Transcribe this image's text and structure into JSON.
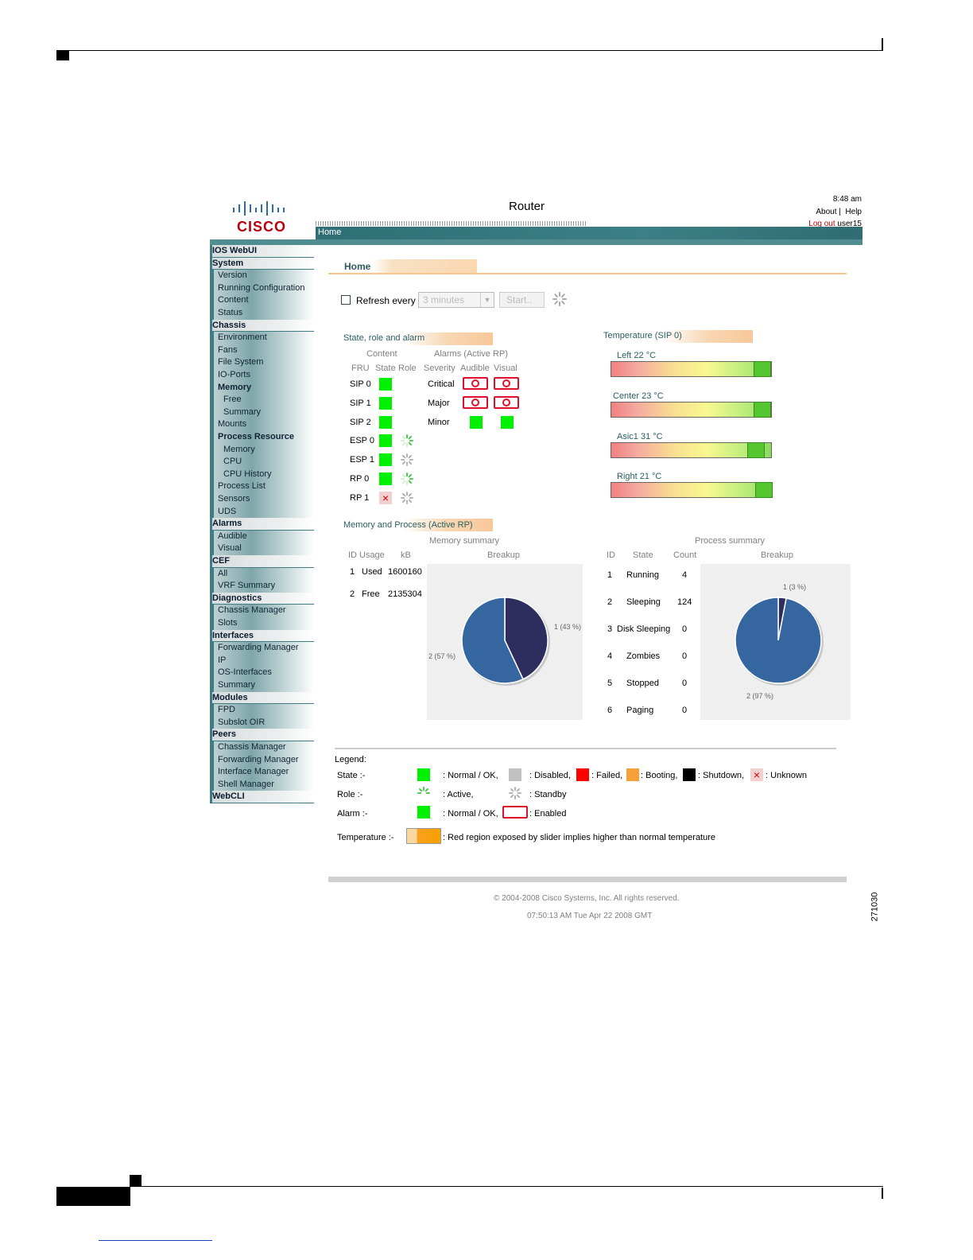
{
  "figure_number": "271030",
  "header": {
    "logo_text": "CISCO",
    "title": "Router",
    "time": "8:48 am",
    "about": "About",
    "help": "Help",
    "logout": "Log out",
    "user": "user15",
    "home_tab": "Home"
  },
  "sidebar": [
    {
      "label": "IOS WebUI",
      "kind": "hdr"
    },
    {
      "label": "System",
      "kind": "hdr"
    },
    {
      "label": "Version",
      "kind": "item"
    },
    {
      "label": "Running Configuration",
      "kind": "item"
    },
    {
      "label": "Content",
      "kind": "item"
    },
    {
      "label": "Status",
      "kind": "item"
    },
    {
      "label": "Chassis",
      "kind": "hdr"
    },
    {
      "label": "Environment",
      "kind": "item"
    },
    {
      "label": "Fans",
      "kind": "item"
    },
    {
      "label": "File System",
      "kind": "item"
    },
    {
      "label": "IO-Ports",
      "kind": "item"
    },
    {
      "label": "Memory",
      "kind": "sub"
    },
    {
      "label": "Free",
      "kind": "subitem"
    },
    {
      "label": "Summary",
      "kind": "subitem"
    },
    {
      "label": "Mounts",
      "kind": "item"
    },
    {
      "label": "Process Resource",
      "kind": "sub"
    },
    {
      "label": "Memory",
      "kind": "subitem"
    },
    {
      "label": "CPU",
      "kind": "subitem"
    },
    {
      "label": "CPU History",
      "kind": "subitem"
    },
    {
      "label": "Process List",
      "kind": "item"
    },
    {
      "label": "Sensors",
      "kind": "item"
    },
    {
      "label": "UDS",
      "kind": "item"
    },
    {
      "label": "Alarms",
      "kind": "hdr"
    },
    {
      "label": "Audible",
      "kind": "item"
    },
    {
      "label": "Visual",
      "kind": "item"
    },
    {
      "label": "CEF",
      "kind": "hdr"
    },
    {
      "label": "All",
      "kind": "item"
    },
    {
      "label": "VRF Summary",
      "kind": "item"
    },
    {
      "label": "Diagnostics",
      "kind": "hdr"
    },
    {
      "label": "Chassis Manager",
      "kind": "item"
    },
    {
      "label": "Slots",
      "kind": "item"
    },
    {
      "label": "Interfaces",
      "kind": "hdr"
    },
    {
      "label": "Forwarding Manager",
      "kind": "item"
    },
    {
      "label": "IP",
      "kind": "item"
    },
    {
      "label": "OS-Interfaces",
      "kind": "item"
    },
    {
      "label": "Summary",
      "kind": "item"
    },
    {
      "label": "Modules",
      "kind": "hdr"
    },
    {
      "label": "FPD",
      "kind": "item"
    },
    {
      "label": "Subslot OIR",
      "kind": "item"
    },
    {
      "label": "Peers",
      "kind": "hdr"
    },
    {
      "label": "Chassis Manager",
      "kind": "item"
    },
    {
      "label": "Forwarding Manager",
      "kind": "item"
    },
    {
      "label": "Interface Manager",
      "kind": "item"
    },
    {
      "label": "Shell Manager",
      "kind": "item"
    },
    {
      "label": "WebCLI",
      "kind": "hdr"
    }
  ],
  "main": {
    "page_title": "Home",
    "refresh_label": "Refresh every",
    "refresh_value": "3 minutes",
    "start_button": "Start..",
    "state_section": {
      "title": "State, role and alarm",
      "content_hdr": "Content",
      "alarms_hdr": "Alarms (Active RP)",
      "cols": [
        "FRU",
        "State",
        "Role",
        "Severity",
        "Audible",
        "Visual"
      ],
      "frus": [
        {
          "name": "SIP 0",
          "state": "ok",
          "role": ""
        },
        {
          "name": "SIP 1",
          "state": "ok",
          "role": ""
        },
        {
          "name": "SIP 2",
          "state": "ok",
          "role": ""
        },
        {
          "name": "ESP 0",
          "state": "ok",
          "role": "active"
        },
        {
          "name": "ESP 1",
          "state": "ok",
          "role": "standby"
        },
        {
          "name": "RP 0",
          "state": "ok",
          "role": "active"
        },
        {
          "name": "RP 1",
          "state": "unknown",
          "role": "standby"
        }
      ],
      "alarms": [
        {
          "severity": "Critical",
          "audible": "enabled",
          "visual": "enabled"
        },
        {
          "severity": "Major",
          "audible": "enabled",
          "visual": "enabled"
        },
        {
          "severity": "Minor",
          "audible": "ok",
          "visual": "ok"
        }
      ]
    },
    "temperature": {
      "title": "Temperature (SIP 0)",
      "sensors": [
        {
          "label": "Left 22 °C"
        },
        {
          "label": "Center 23 °C"
        },
        {
          "label": "Asic1 31 °C"
        },
        {
          "label": "Right 21 °C"
        }
      ]
    },
    "memproc": {
      "title": "Memory and Process (Active RP)",
      "memory_summary": "Memory summary",
      "mem_cols": [
        "ID",
        "Usage",
        "kB"
      ],
      "breakup": "Breakup",
      "mem_rows": [
        {
          "id": "1",
          "usage": "Used",
          "kb": "1600160"
        },
        {
          "id": "2",
          "usage": "Free",
          "kb": "2135304"
        }
      ],
      "process_summary": "Process summary",
      "proc_cols": [
        "ID",
        "State",
        "Count"
      ],
      "proc_rows": [
        {
          "id": "1",
          "state": "Running",
          "count": "4"
        },
        {
          "id": "2",
          "state": "Sleeping",
          "count": "124"
        },
        {
          "id": "3",
          "state": "Disk Sleeping",
          "count": "0"
        },
        {
          "id": "4",
          "state": "Zombies",
          "count": "0"
        },
        {
          "id": "5",
          "state": "Stopped",
          "count": "0"
        },
        {
          "id": "6",
          "state": "Paging",
          "count": "0"
        }
      ]
    },
    "legend": {
      "title": "Legend:",
      "state_label": "State :-",
      "state_items": [
        ": Normal / OK,",
        ": Disabled,",
        ": Failed,",
        ": Booting,",
        ": Shutdown,",
        ": Unknown"
      ],
      "role_label": "Role :-",
      "role_items": [
        ": Active,",
        ": Standby"
      ],
      "alarm_label": "Alarm :-",
      "alarm_items": [
        ": Normal / OK,",
        ": Enabled"
      ],
      "temp_label": "Temperature :-",
      "temp_text": ": Red region exposed by slider implies higher than normal temperature"
    },
    "footer": {
      "copyright": "© 2004-2008 Cisco Systems, Inc. All rights reserved.",
      "timestamp": "07:50:13 AM Tue Apr 22 2008 GMT"
    }
  },
  "chart_data": [
    {
      "type": "pie",
      "title": "",
      "slices": [
        {
          "label": "1 (43 %)",
          "value": 43,
          "color": "#2e2e5e"
        },
        {
          "label": "2 (57 %)",
          "value": 57,
          "color": "#3566a0"
        }
      ]
    },
    {
      "type": "pie",
      "title": "",
      "slices": [
        {
          "label": "1 (3 %)",
          "value": 3,
          "color": "#2e2e5e"
        },
        {
          "label": "2 (97 %)",
          "value": 97,
          "color": "#3566a0"
        }
      ]
    }
  ],
  "colors": {
    "teal": "#3e7d84",
    "ok_green": "#00f000",
    "failed_red": "#ff0000",
    "booting_orange": "#f7a03a",
    "disabled_grey": "#c0c0c0",
    "shutdown_black": "#000000"
  }
}
